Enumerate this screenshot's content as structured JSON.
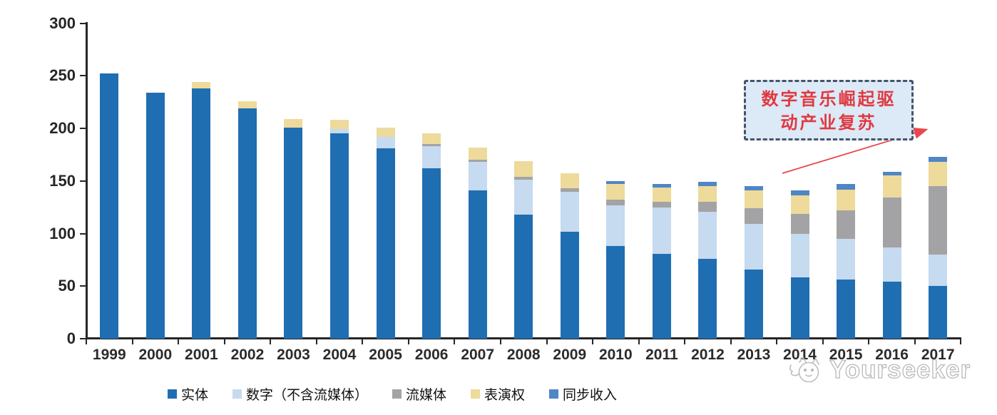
{
  "chart_data": {
    "type": "bar",
    "stacked": true,
    "title": "",
    "xlabel": "",
    "ylabel": "",
    "categories": [
      "1999",
      "2000",
      "2001",
      "2002",
      "2003",
      "2004",
      "2005",
      "2006",
      "2007",
      "2008",
      "2009",
      "2010",
      "2011",
      "2012",
      "2013",
      "2014",
      "2015",
      "2016",
      "2017"
    ],
    "series": [
      {
        "name": "实体",
        "color": "#1f6eb2",
        "values": [
          252,
          234,
          238,
          219,
          201,
          195,
          181,
          162,
          141,
          118,
          102,
          88,
          81,
          76,
          66,
          58,
          56,
          54,
          50
        ]
      },
      {
        "name": "数字（不含流媒体）",
        "color": "#c6daf0",
        "values": [
          0,
          0,
          0,
          0,
          0,
          4,
          11,
          21,
          27,
          33,
          38,
          39,
          44,
          45,
          43,
          42,
          39,
          33,
          30
        ]
      },
      {
        "name": "流媒体",
        "color": "#a3a3a5",
        "values": [
          0,
          0,
          0,
          0,
          0,
          0,
          0,
          2,
          2,
          3,
          3,
          5,
          5,
          9,
          15,
          19,
          27,
          47,
          65
        ]
      },
      {
        "name": "表演权",
        "color": "#eeda9b",
        "values": [
          0,
          0,
          6,
          7,
          8,
          9,
          9,
          10,
          12,
          15,
          14,
          15,
          14,
          15,
          17,
          17,
          20,
          21,
          23
        ]
      },
      {
        "name": "同步收入",
        "color": "#4e86c6",
        "values": [
          0,
          0,
          0,
          0,
          0,
          0,
          0,
          0,
          0,
          0,
          0,
          3,
          3,
          4,
          4,
          5,
          5,
          4,
          5
        ]
      }
    ],
    "ylim": [
      0,
      300
    ],
    "yticks": [
      0,
      50,
      100,
      150,
      200,
      250,
      300
    ],
    "grid": false,
    "legend_position": "bottom"
  },
  "annotation": {
    "line1": "数字音乐崛起驱",
    "line2": "动产业复苏",
    "text_color": "#e0393f",
    "box_fill": "#dce9f7",
    "border_color": "#44546a",
    "arrow_color": "#e8474b"
  },
  "watermark": {
    "text": "Yourseeker"
  }
}
